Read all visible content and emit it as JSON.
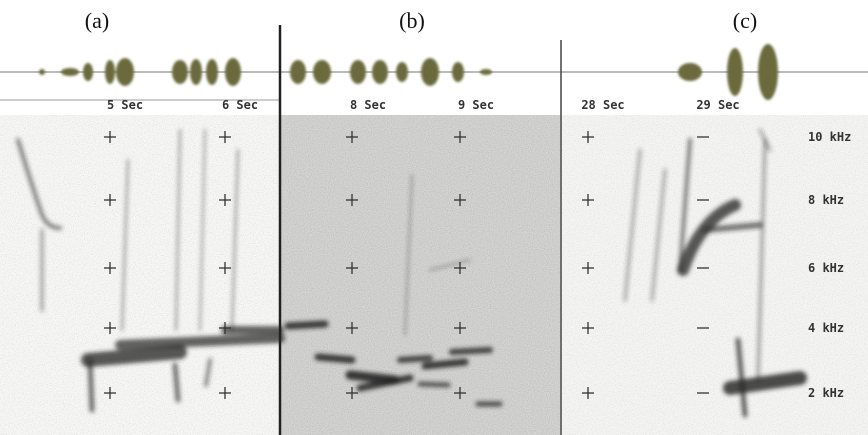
{
  "panels": [
    {
      "label": "(a)",
      "times": [
        "5 Sec",
        "6 Sec"
      ]
    },
    {
      "label": "(b)",
      "times": [
        "8 Sec",
        "9 Sec"
      ]
    },
    {
      "label": "(c)",
      "times": [
        "28 Sec",
        "29 Sec"
      ]
    }
  ],
  "frequencies": [
    "10 kHz",
    "8 kHz",
    "6 kHz",
    "4 kHz",
    "2 kHz"
  ]
}
